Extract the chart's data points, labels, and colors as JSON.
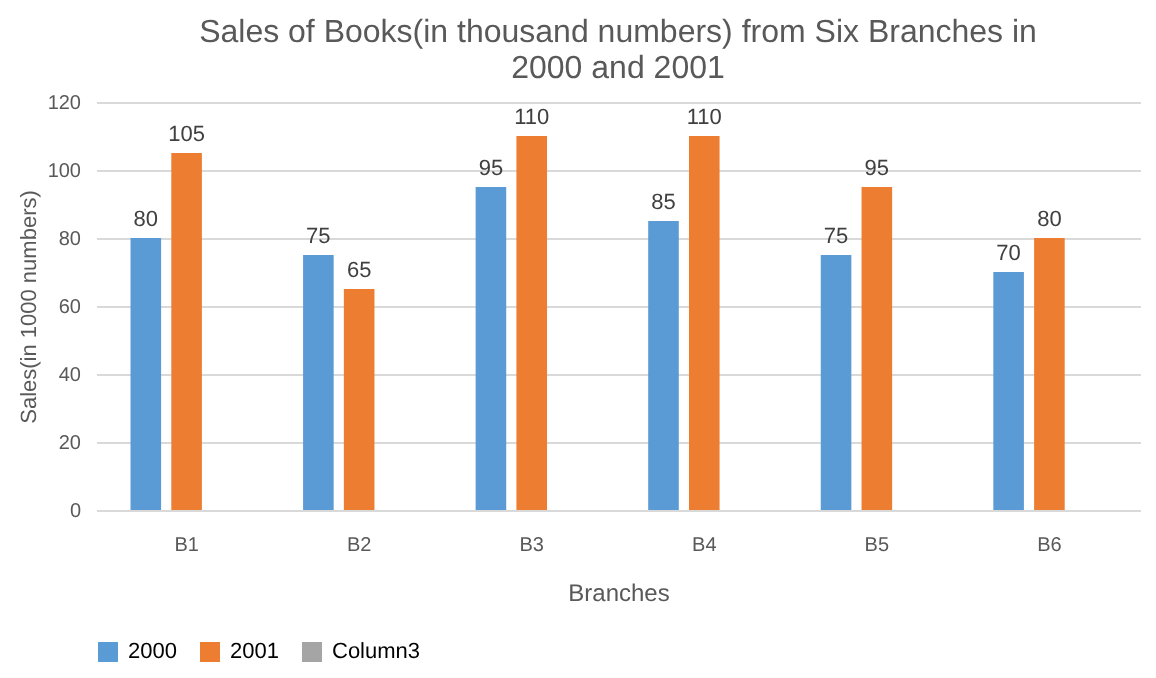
{
  "chart_data": {
    "type": "bar",
    "title": "Sales of Books(in thousand numbers) from Six Branches in 2000 and 2001",
    "xlabel": "Branches",
    "ylabel": "Sales(in 1000 numbers)",
    "categories": [
      "B1",
      "B2",
      "B3",
      "B4",
      "B5",
      "B6"
    ],
    "series": [
      {
        "name": "2000",
        "color": "#5b9bd5",
        "values": [
          80,
          75,
          95,
          85,
          75,
          70
        ]
      },
      {
        "name": "2001",
        "color": "#ed7d31",
        "values": [
          105,
          65,
          110,
          110,
          95,
          80
        ]
      },
      {
        "name": "Column3",
        "color": "#a5a5a5",
        "values": [
          null,
          null,
          null,
          null,
          null,
          null
        ]
      }
    ],
    "ylim": [
      0,
      120
    ],
    "yticks": [
      0,
      20,
      40,
      60,
      80,
      100,
      120
    ],
    "grid": "y",
    "legend": "bottom",
    "data_labels": true
  }
}
